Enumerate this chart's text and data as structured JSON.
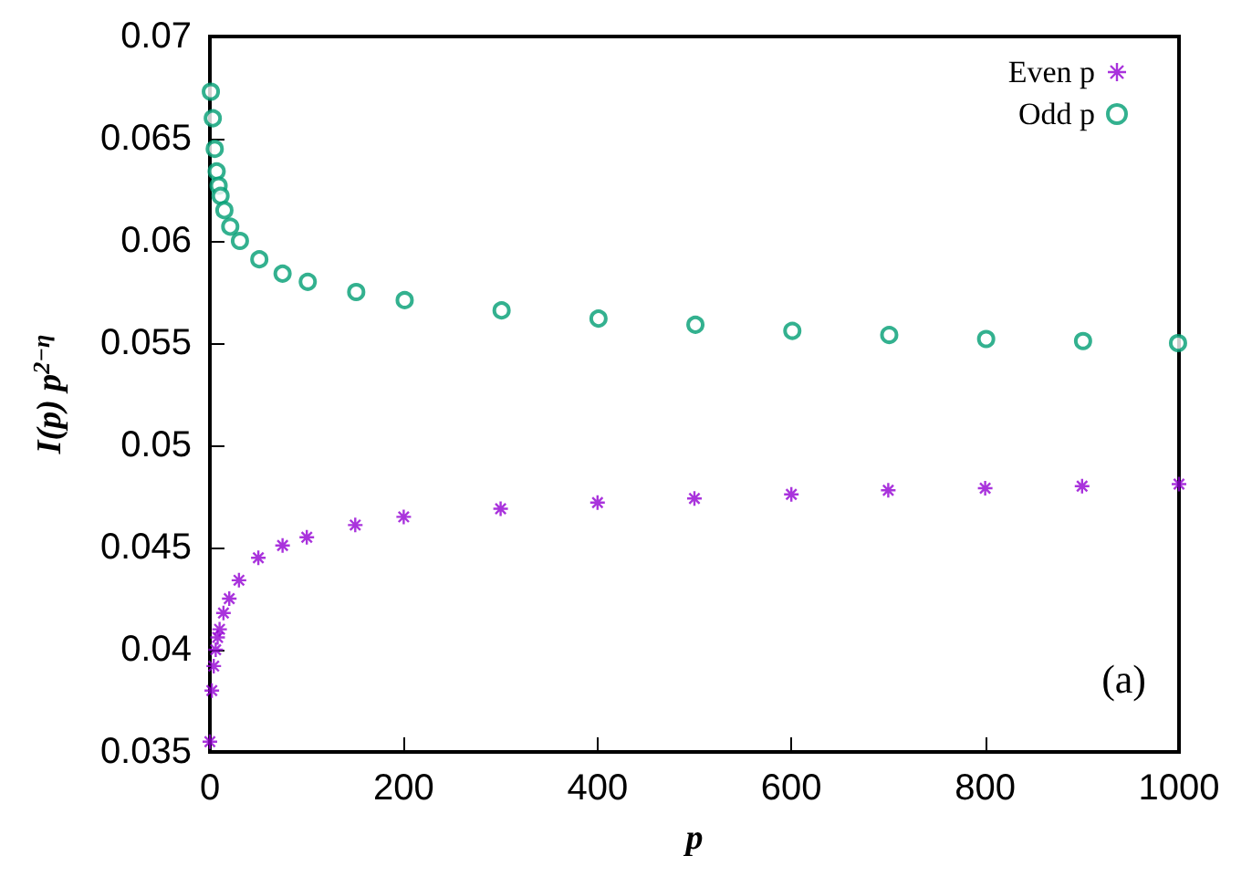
{
  "chart_data": {
    "type": "scatter",
    "xlabel": "p",
    "ylabel": "I(p) p$^{2−η}$",
    "annotations": [
      "(a)"
    ],
    "series": [
      {
        "name": "Even p",
        "color": "#9400d3",
        "marker": "cross",
        "x": [
          0,
          2,
          4,
          6,
          8,
          10,
          14,
          20,
          30,
          50,
          75,
          100,
          150,
          200,
          300,
          400,
          500,
          600,
          700,
          800,
          900,
          1000
        ],
        "values": [
          0.0355,
          0.038,
          0.0392,
          0.04,
          0.0406,
          0.041,
          0.0418,
          0.0425,
          0.0434,
          0.0445,
          0.0451,
          0.0455,
          0.0461,
          0.0465,
          0.0469,
          0.0472,
          0.0474,
          0.0476,
          0.0478,
          0.0479,
          0.048,
          0.0481
        ]
      },
      {
        "name": "Odd p",
        "color": "#009e73",
        "marker": "circle",
        "x": [
          1,
          3,
          5,
          7,
          9,
          11,
          15,
          21,
          31,
          51,
          75,
          101,
          151,
          201,
          301,
          401,
          501,
          601,
          701,
          801,
          901,
          999
        ],
        "values": [
          0.0673,
          0.066,
          0.0645,
          0.0634,
          0.0627,
          0.0622,
          0.0615,
          0.0607,
          0.06,
          0.0591,
          0.0584,
          0.058,
          0.0575,
          0.0571,
          0.0566,
          0.0562,
          0.0559,
          0.0556,
          0.0554,
          0.0552,
          0.0551,
          0.055
        ]
      }
    ],
    "xlim": [
      0,
      1000
    ],
    "xticks": [
      0,
      200,
      400,
      600,
      800,
      1000
    ],
    "ylim": [
      0.035,
      0.07
    ],
    "yticks": [
      0.035,
      0.04,
      0.045,
      0.05,
      0.055,
      0.06,
      0.065,
      0.07
    ],
    "grid": false,
    "legend": "top right"
  }
}
